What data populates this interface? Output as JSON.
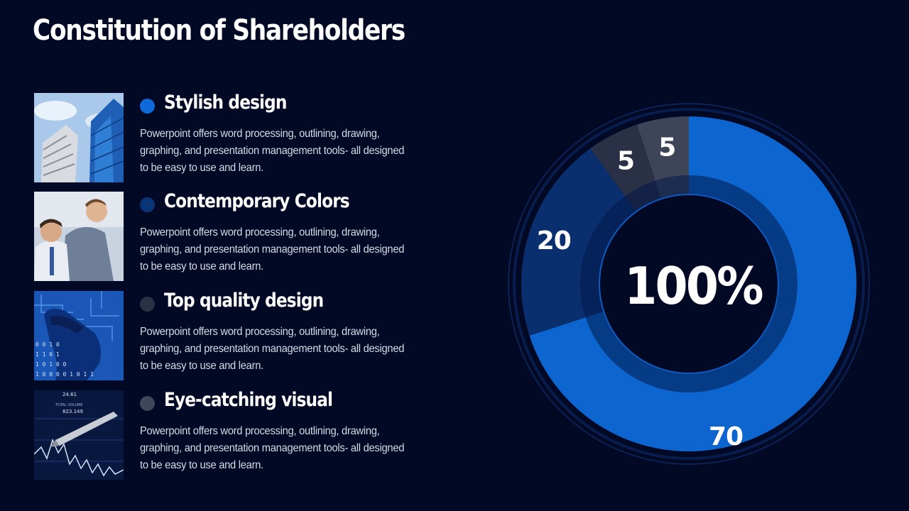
{
  "title": "Constitution of Shareholders",
  "items": [
    {
      "title": "Stylish design",
      "description": "Powerpoint offers word processing, outlining, drawing, graphing, and presentation management tools- all designed to be easy to use and learn.",
      "dot_color": "#0d6ad8",
      "image_icon": "skyscraper-photo-icon"
    },
    {
      "title": "Contemporary Colors",
      "description": "Powerpoint offers word processing, outlining, drawing, graphing, and presentation management tools- all designed to be easy to use and learn.",
      "dot_color": "#0a3478",
      "image_icon": "business-people-photo-icon"
    },
    {
      "title": "Top quality design",
      "description": "Powerpoint offers word processing, outlining, drawing, graphing, and presentation management tools- all designed to be easy to use and learn.",
      "dot_color": "#2b3145",
      "image_icon": "digital-head-photo-icon"
    },
    {
      "title": "Eye-catching visual",
      "description": "Powerpoint offers word processing, outlining, drawing, graphing, and presentation management tools- all designed to be easy to use and learn.",
      "dot_color": "#40475a",
      "image_icon": "stock-chart-photo-icon"
    }
  ],
  "chart_data": {
    "type": "pie",
    "center_label": "100%",
    "slices": [
      {
        "label": "70",
        "value": 70,
        "color": "#0d66cf"
      },
      {
        "label": "20",
        "value": 20,
        "color": "#0a2f6e"
      },
      {
        "label": "5",
        "value": 5,
        "color": "#2a3045"
      },
      {
        "label": "5",
        "value": 5,
        "color": "#3f4559"
      }
    ]
  }
}
